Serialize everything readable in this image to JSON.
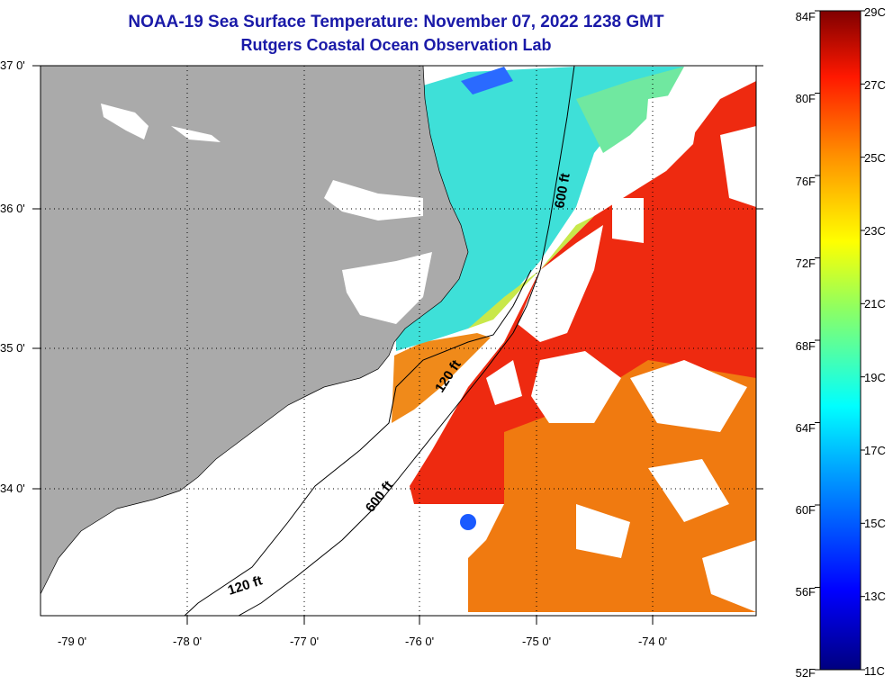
{
  "header": {
    "title": "NOAA-19 Sea Surface Temperature:  November 07, 2022 1238 GMT",
    "subtitle": "Rutgers Coastal Ocean Observation Lab"
  },
  "map": {
    "lat_labels": [
      "37 0'",
      "36 0'",
      "35 0'",
      "34 0'"
    ],
    "lon_labels": [
      "-79 0'",
      "-78 0'",
      "-77 0'",
      "-76 0'",
      "-75 0'",
      "-74 0'"
    ],
    "depth_labels": [
      "600 ft",
      "120 ft",
      "600 ft",
      "120 ft"
    ],
    "colors": {
      "land": "#aaaaaa",
      "cloud": "#ffffff"
    }
  },
  "colorbar": {
    "f_labels": [
      "84F",
      "80F",
      "76F",
      "72F",
      "68F",
      "64F",
      "60F",
      "56F",
      "52F"
    ],
    "c_labels": [
      "29C",
      "27C",
      "25C",
      "23C",
      "21C",
      "19C",
      "17C",
      "15C",
      "13C",
      "11C"
    ],
    "range_f": [
      52,
      84
    ],
    "range_c": [
      11,
      29
    ],
    "colors": [
      "#00008b",
      "#0000ff",
      "#00bfff",
      "#00ffff",
      "#ffff00",
      "#ff8c00",
      "#ff0000",
      "#8b0000"
    ]
  }
}
